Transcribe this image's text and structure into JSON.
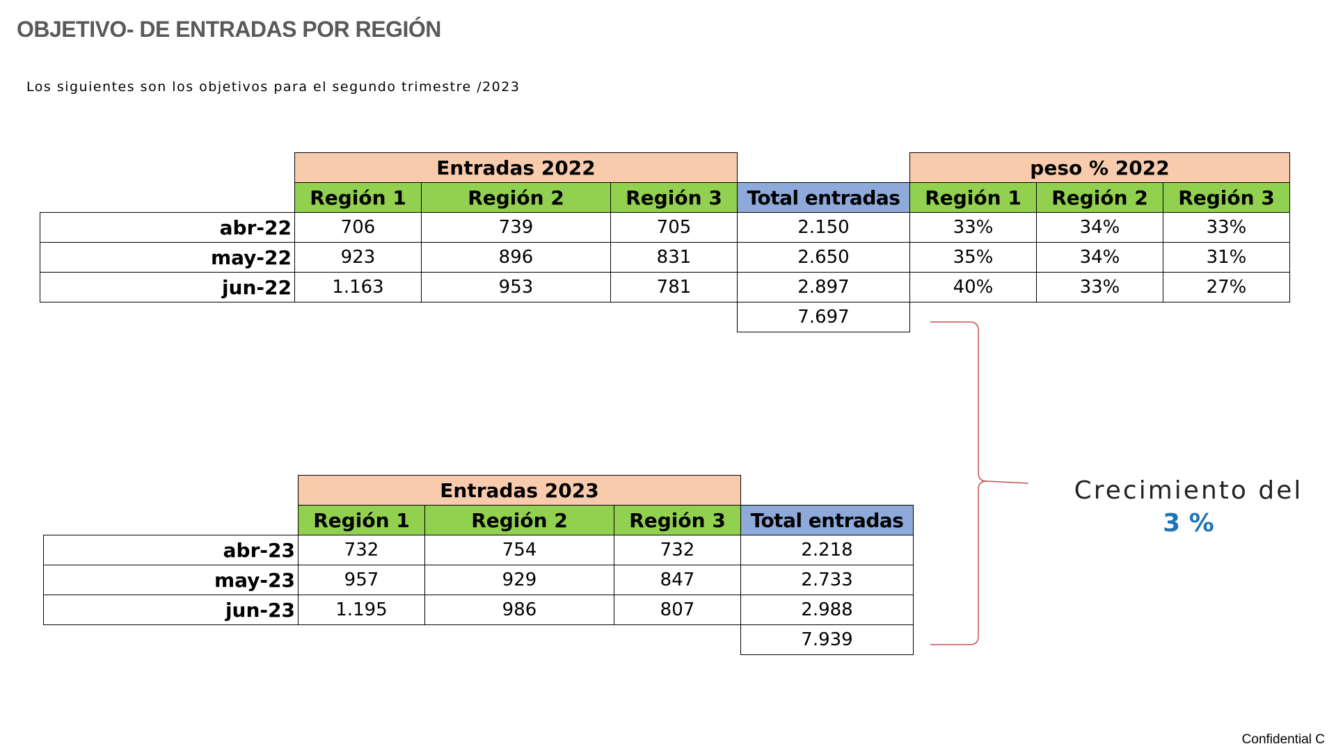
{
  "title": "OBJETIVO- DE ENTRADAS POR REGIÓN",
  "subtitle": "Los siguientes son los objetivos para el segundo trimestre /2023",
  "table2022": {
    "group_header": "Entradas 2022",
    "weight_header": "peso % 2022",
    "columns": [
      "Región 1",
      "Región 2",
      "Región 3",
      "Total entradas",
      "Región 1",
      "Región 2",
      "Región 3"
    ],
    "rows": [
      {
        "label": "abr-22",
        "cells": [
          "706",
          "739",
          "705",
          "2.150",
          "33%",
          "34%",
          "33%"
        ]
      },
      {
        "label": "may-22",
        "cells": [
          "923",
          "896",
          "831",
          "2.650",
          "35%",
          "34%",
          "31%"
        ]
      },
      {
        "label": "jun-22",
        "cells": [
          "1.163",
          "953",
          "781",
          "2.897",
          "40%",
          "33%",
          "27%"
        ]
      }
    ],
    "grand_total": "7.697"
  },
  "table2023": {
    "group_header": "Entradas 2023",
    "columns": [
      "Región 1",
      "Región 2",
      "Región 3",
      "Total entradas"
    ],
    "rows": [
      {
        "label": "abr-23",
        "cells": [
          "732",
          "754",
          "732",
          "2.218"
        ]
      },
      {
        "label": "may-23",
        "cells": [
          "957",
          "929",
          "847",
          "2.733"
        ]
      },
      {
        "label": "jun-23",
        "cells": [
          "1.195",
          "986",
          "807",
          "2.988"
        ]
      }
    ],
    "grand_total": "7.939"
  },
  "growth": {
    "label": "Crecimiento del",
    "value": "3 %"
  },
  "footer": "Confidential C",
  "colors": {
    "group_header_bg": "#f8cbad",
    "region_header_bg": "#92d050",
    "total_header_bg": "#8eaadb",
    "brace": "#c0504d",
    "growth_value": "#1f73b7",
    "title": "#595959"
  }
}
